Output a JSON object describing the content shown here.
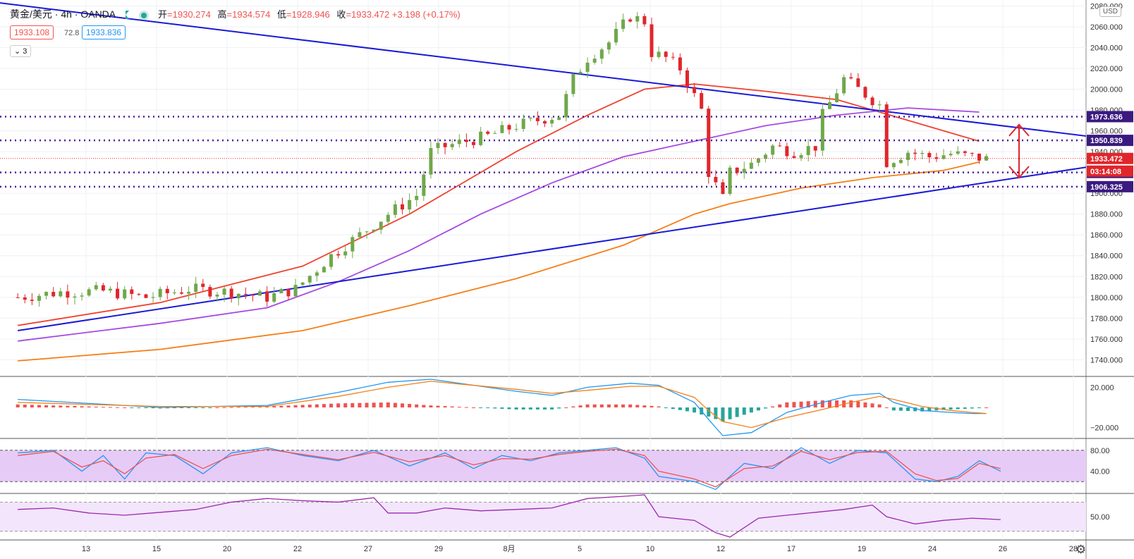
{
  "header": {
    "symbol": "黄金/美元 · 4h · OANDA",
    "open_label": "开",
    "open": "=1930.274",
    "high_label": "高",
    "high": "=1934.574",
    "low_label": "低",
    "low": "=1928.946",
    "close_label": "收",
    "close": "=1933.472",
    "change": "+3.198 (+0.17%)",
    "bid": "1933.108",
    "spread": "72.8",
    "ask": "1933.836",
    "indicator_count": "3",
    "currency": "USD"
  },
  "icons": {
    "flag": "flag-icon",
    "live": "live-dot-icon",
    "settings": "gear-icon",
    "arrow": "double-arrow-icon"
  },
  "colors": {
    "up": "#6fa84a",
    "down": "#e0262b",
    "sma_fast": "#f04230",
    "sma_mid": "#a64ae0",
    "sma_slow": "#f57f17",
    "trendline": "#1a1ad6",
    "level": "#4a1a9e",
    "macd": "#2196f3",
    "signal": "#f57f17",
    "hist_up": "#ef5350",
    "hist_down": "#26a69a",
    "stoch_k": "#2196f3",
    "stoch_d": "#ef5350",
    "rsi": "#9c27b0",
    "band_fill": "#e6cbf7"
  },
  "chart_data": [
    {
      "type": "candlestick",
      "title": "",
      "xlabel": "",
      "ylabel": "",
      "ylim": [
        1724,
        2083
      ],
      "x_ticks": [
        "13",
        "15",
        "20",
        "22",
        "27",
        "29",
        "8月",
        "5",
        "10",
        "12",
        "17",
        "19",
        "24",
        "26",
        "28"
      ],
      "y_ticks": [
        "1740.000",
        "1760.000",
        "1780.000",
        "1800.000",
        "1820.000",
        "1840.000",
        "1860.000",
        "1880.000",
        "1900.000",
        "1920.000",
        "1940.000",
        "1960.000",
        "1980.000",
        "2000.000",
        "2020.000",
        "2040.000",
        "2060.000",
        "2080.000"
      ],
      "price_path": [
        [
          0,
          1800
        ],
        [
          6,
          1805
        ],
        [
          12,
          1806
        ],
        [
          18,
          1800
        ],
        [
          24,
          1808
        ],
        [
          30,
          1805
        ],
        [
          35,
          1800
        ],
        [
          39,
          1808
        ],
        [
          44,
          1840
        ],
        [
          48,
          1860
        ],
        [
          52,
          1880
        ],
        [
          56,
          1898
        ],
        [
          58,
          1940
        ],
        [
          60,
          1945
        ],
        [
          63,
          1950
        ],
        [
          66,
          1955
        ],
        [
          70,
          1965
        ],
        [
          74,
          1972
        ],
        [
          76,
          1975
        ],
        [
          78,
          2010
        ],
        [
          80,
          2030
        ],
        [
          83,
          2045
        ],
        [
          86,
          2070
        ],
        [
          88,
          2065
        ],
        [
          89,
          2035
        ],
        [
          91,
          2030
        ],
        [
          93,
          2020
        ],
        [
          96,
          1980
        ],
        [
          97,
          1920
        ],
        [
          99,
          1895
        ],
        [
          100,
          1920
        ],
        [
          103,
          1928
        ],
        [
          106,
          1945
        ],
        [
          109,
          1940
        ],
        [
          112,
          1945
        ],
        [
          113,
          1975
        ],
        [
          116,
          2010
        ],
        [
          119,
          1995
        ],
        [
          121,
          1985
        ],
        [
          122,
          1930
        ],
        [
          125,
          1940
        ],
        [
          128,
          1935
        ],
        [
          131,
          1938
        ],
        [
          134,
          1935
        ],
        [
          136,
          1933
        ]
      ],
      "current_price": "1933.472",
      "countdown": "03:14:08",
      "levels": [
        {
          "label": "1973.636",
          "value": 1973.636
        },
        {
          "label": "1950.839",
          "value": 1950.839
        },
        {
          "label": "1920.000",
          "value": 1920.0
        },
        {
          "label": "1906.325",
          "value": 1906.325
        }
      ],
      "trendlines": [
        {
          "from": [
            -5,
            2085
          ],
          "to": [
            150,
            1955
          ]
        },
        {
          "from": [
            0,
            1768
          ],
          "to": [
            150,
            1925
          ]
        }
      ],
      "moving_averages": [
        {
          "points": [
            [
              0,
              1773
            ],
            [
              20,
              1795
            ],
            [
              40,
              1830
            ],
            [
              55,
              1880
            ],
            [
              70,
              1940
            ],
            [
              80,
              1975
            ],
            [
              88,
              2000
            ],
            [
              95,
              2005
            ],
            [
              105,
              1998
            ],
            [
              115,
              1990
            ],
            [
              125,
              1970
            ],
            [
              135,
              1950
            ]
          ]
        },
        {
          "points": [
            [
              0,
              1758
            ],
            [
              20,
              1775
            ],
            [
              35,
              1790
            ],
            [
              45,
              1815
            ],
            [
              55,
              1845
            ],
            [
              65,
              1880
            ],
            [
              75,
              1910
            ],
            [
              85,
              1935
            ],
            [
              95,
              1950
            ],
            [
              105,
              1965
            ],
            [
              115,
              1975
            ],
            [
              125,
              1982
            ],
            [
              135,
              1978
            ]
          ]
        },
        {
          "points": [
            [
              0,
              1739
            ],
            [
              20,
              1750
            ],
            [
              40,
              1768
            ],
            [
              55,
              1792
            ],
            [
              70,
              1818
            ],
            [
              85,
              1850
            ],
            [
              95,
              1880
            ],
            [
              100,
              1890
            ],
            [
              110,
              1905
            ],
            [
              120,
              1915
            ],
            [
              130,
              1922
            ],
            [
              135,
              1930
            ]
          ]
        }
      ]
    },
    {
      "type": "line",
      "title": "",
      "ylim": [
        -28,
        28
      ],
      "y_ticks": [
        "20.000",
        "−20.000"
      ],
      "series": [
        {
          "values": [
            [
              0,
              8
            ],
            [
              20,
              0
            ],
            [
              35,
              2
            ],
            [
              45,
              15
            ],
            [
              52,
              25
            ],
            [
              58,
              28
            ],
            [
              70,
              16
            ],
            [
              75,
              12
            ],
            [
              80,
              20
            ],
            [
              86,
              24
            ],
            [
              90,
              22
            ],
            [
              95,
              5
            ],
            [
              97,
              -12
            ],
            [
              99,
              -28
            ],
            [
              103,
              -25
            ],
            [
              108,
              -5
            ],
            [
              113,
              5
            ],
            [
              117,
              12
            ],
            [
              121,
              14
            ],
            [
              123,
              5
            ],
            [
              127,
              -3
            ],
            [
              131,
              -5
            ],
            [
              134,
              -6
            ],
            [
              136,
              -6
            ]
          ]
        },
        {
          "values": [
            [
              0,
              5
            ],
            [
              20,
              1
            ],
            [
              35,
              1
            ],
            [
              45,
              11
            ],
            [
              52,
              20
            ],
            [
              58,
              26
            ],
            [
              70,
              18
            ],
            [
              75,
              14
            ],
            [
              80,
              17
            ],
            [
              86,
              21
            ],
            [
              90,
              21
            ],
            [
              95,
              10
            ],
            [
              97,
              -3
            ],
            [
              99,
              -14
            ],
            [
              103,
              -20
            ],
            [
              108,
              -10
            ],
            [
              113,
              -2
            ],
            [
              117,
              5
            ],
            [
              121,
              11
            ],
            [
              123,
              8
            ],
            [
              127,
              1
            ],
            [
              131,
              -3
            ],
            [
              134,
              -5
            ],
            [
              136,
              -6
            ]
          ]
        }
      ]
    },
    {
      "type": "line",
      "title": "",
      "ylim": [
        0,
        100
      ],
      "y_ticks": [
        "80.00",
        "40.00"
      ],
      "band": [
        20,
        80
      ],
      "series": [
        {
          "values": [
            [
              0,
              75
            ],
            [
              5,
              80
            ],
            [
              9,
              40
            ],
            [
              12,
              70
            ],
            [
              15,
              25
            ],
            [
              18,
              75
            ],
            [
              22,
              70
            ],
            [
              26,
              35
            ],
            [
              30,
              75
            ],
            [
              35,
              85
            ],
            [
              40,
              70
            ],
            [
              45,
              60
            ],
            [
              50,
              80
            ],
            [
              55,
              50
            ],
            [
              60,
              75
            ],
            [
              64,
              45
            ],
            [
              68,
              70
            ],
            [
              72,
              60
            ],
            [
              76,
              75
            ],
            [
              80,
              80
            ],
            [
              84,
              85
            ],
            [
              88,
              65
            ],
            [
              90,
              30
            ],
            [
              95,
              20
            ],
            [
              98,
              5
            ],
            [
              102,
              55
            ],
            [
              106,
              45
            ],
            [
              110,
              85
            ],
            [
              114,
              55
            ],
            [
              118,
              80
            ],
            [
              122,
              75
            ],
            [
              126,
              25
            ],
            [
              129,
              20
            ],
            [
              132,
              30
            ],
            [
              135,
              60
            ],
            [
              138,
              40
            ]
          ]
        },
        {
          "values": [
            [
              0,
              70
            ],
            [
              5,
              78
            ],
            [
              9,
              48
            ],
            [
              12,
              60
            ],
            [
              15,
              35
            ],
            [
              18,
              65
            ],
            [
              22,
              72
            ],
            [
              26,
              45
            ],
            [
              30,
              70
            ],
            [
              35,
              82
            ],
            [
              40,
              72
            ],
            [
              45,
              62
            ],
            [
              50,
              76
            ],
            [
              55,
              58
            ],
            [
              60,
              70
            ],
            [
              64,
              52
            ],
            [
              68,
              64
            ],
            [
              72,
              63
            ],
            [
              76,
              72
            ],
            [
              80,
              78
            ],
            [
              84,
              82
            ],
            [
              88,
              70
            ],
            [
              90,
              40
            ],
            [
              95,
              25
            ],
            [
              98,
              10
            ],
            [
              102,
              45
            ],
            [
              106,
              50
            ],
            [
              110,
              78
            ],
            [
              114,
              62
            ],
            [
              118,
              76
            ],
            [
              122,
              78
            ],
            [
              126,
              35
            ],
            [
              129,
              22
            ],
            [
              132,
              26
            ],
            [
              135,
              55
            ],
            [
              138,
              45
            ]
          ]
        }
      ]
    },
    {
      "type": "line",
      "title": "",
      "ylim": [
        20,
        80
      ],
      "y_ticks": [
        "50.00"
      ],
      "band": [
        30,
        70
      ],
      "series": [
        {
          "values": [
            [
              0,
              60
            ],
            [
              5,
              62
            ],
            [
              10,
              55
            ],
            [
              15,
              52
            ],
            [
              20,
              56
            ],
            [
              25,
              60
            ],
            [
              30,
              70
            ],
            [
              35,
              75
            ],
            [
              40,
              72
            ],
            [
              45,
              70
            ],
            [
              50,
              76
            ],
            [
              52,
              55
            ],
            [
              56,
              55
            ],
            [
              60,
              62
            ],
            [
              65,
              58
            ],
            [
              70,
              60
            ],
            [
              75,
              62
            ],
            [
              80,
              75
            ],
            [
              85,
              78
            ],
            [
              88,
              80
            ],
            [
              90,
              50
            ],
            [
              95,
              45
            ],
            [
              98,
              28
            ],
            [
              100,
              22
            ],
            [
              104,
              48
            ],
            [
              108,
              52
            ],
            [
              112,
              56
            ],
            [
              116,
              60
            ],
            [
              120,
              66
            ],
            [
              122,
              50
            ],
            [
              126,
              40
            ],
            [
              130,
              45
            ],
            [
              134,
              48
            ],
            [
              138,
              46
            ]
          ]
        }
      ]
    }
  ]
}
